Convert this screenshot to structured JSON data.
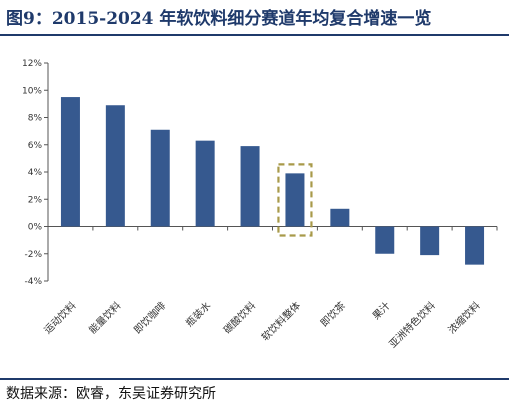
{
  "title": "图9：2015-2024 年软饮料细分赛道年均复合增速一览",
  "source": "数据来源：欧睿，东吴证券研究所",
  "colors": {
    "bar": "#36598f",
    "highlight_box": "#a89a4a",
    "title": "#1f3a6b"
  },
  "chart_data": {
    "type": "bar",
    "categories": [
      "运动饮料",
      "能量饮料",
      "即饮咖啡",
      "瓶装水",
      "碳酸饮料",
      "软饮料整体",
      "即饮茶",
      "果汁",
      "亚洲特色饮料",
      "浓缩饮料"
    ],
    "values": [
      9.5,
      8.9,
      7.1,
      6.3,
      5.9,
      3.9,
      1.3,
      -2.0,
      -2.1,
      -2.8
    ],
    "highlighted_category": "软饮料整体",
    "ylim": [
      -4,
      12
    ],
    "yticks": [
      "-4%",
      "-2%",
      "0%",
      "2%",
      "4%",
      "6%",
      "8%",
      "10%",
      "12%"
    ],
    "ytick_values": [
      -4,
      -2,
      0,
      2,
      4,
      6,
      8,
      10,
      12
    ],
    "grid": false,
    "legend": "none"
  }
}
